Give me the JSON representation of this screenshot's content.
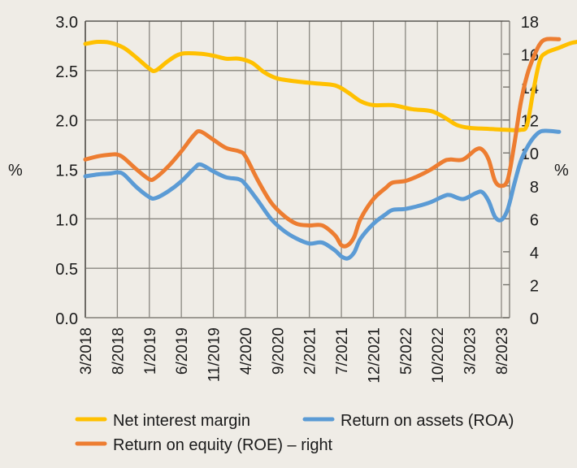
{
  "chart_data": {
    "type": "line",
    "title": "",
    "xlabel": "",
    "ylabel_left": "%",
    "ylabel_right": "%",
    "ylim_left": [
      0,
      3.0
    ],
    "ylim_right": [
      0,
      18
    ],
    "yticks_left": [
      "0.0",
      "0.5",
      "1.0",
      "1.5",
      "2.0",
      "2.5",
      "3.0"
    ],
    "yticks_right": [
      "0",
      "2",
      "4",
      "6",
      "8",
      "10",
      "12",
      "14",
      "16",
      "18"
    ],
    "xtick_labels": [
      "3/2018",
      "8/2018",
      "1/2019",
      "6/2019",
      "11/2019",
      "4/2020",
      "9/2020",
      "2/2021",
      "7/2021",
      "12/2021",
      "5/2022",
      "10/2022",
      "3/2023",
      "8/2023"
    ],
    "x_months_from_start_end": 66,
    "grid": true,
    "legend_position": "bottom",
    "series": [
      {
        "name": "Net interest margin",
        "axis": "left",
        "color": "#ffc000",
        "points": [
          [
            0,
            2.77
          ],
          [
            2,
            2.79
          ],
          [
            4,
            2.78
          ],
          [
            6,
            2.73
          ],
          [
            8,
            2.63
          ],
          [
            10,
            2.52
          ],
          [
            11,
            2.5
          ],
          [
            13,
            2.6
          ],
          [
            15,
            2.67
          ],
          [
            18,
            2.67
          ],
          [
            20,
            2.65
          ],
          [
            22,
            2.62
          ],
          [
            24,
            2.62
          ],
          [
            26,
            2.58
          ],
          [
            28,
            2.48
          ],
          [
            30,
            2.42
          ],
          [
            33,
            2.39
          ],
          [
            36,
            2.37
          ],
          [
            39,
            2.35
          ],
          [
            41,
            2.28
          ],
          [
            43,
            2.19
          ],
          [
            45,
            2.15
          ],
          [
            48,
            2.15
          ],
          [
            51,
            2.11
          ],
          [
            54,
            2.09
          ],
          [
            56,
            2.03
          ],
          [
            58,
            1.95
          ],
          [
            60,
            1.92
          ],
          [
            63,
            1.91
          ],
          [
            66,
            1.9
          ],
          [
            68,
            1.9
          ],
          [
            69,
            1.95
          ],
          [
            70,
            2.3
          ],
          [
            71,
            2.6
          ],
          [
            72,
            2.68
          ],
          [
            74,
            2.73
          ],
          [
            76,
            2.78
          ],
          [
            78,
            2.8
          ]
        ]
      },
      {
        "name": "Return on equity (ROE) – right",
        "axis": "right",
        "color": "#ed7d31",
        "points": [
          [
            0,
            9.6
          ],
          [
            2,
            9.8
          ],
          [
            4,
            9.9
          ],
          [
            5,
            9.9
          ],
          [
            6,
            9.7
          ],
          [
            8,
            9.0
          ],
          [
            10,
            8.4
          ],
          [
            11,
            8.5
          ],
          [
            13,
            9.2
          ],
          [
            15,
            10.1
          ],
          [
            17,
            11.1
          ],
          [
            18,
            11.3
          ],
          [
            20,
            10.8
          ],
          [
            22,
            10.3
          ],
          [
            24,
            10.1
          ],
          [
            25,
            9.8
          ],
          [
            27,
            8.3
          ],
          [
            29,
            7.0
          ],
          [
            31,
            6.2
          ],
          [
            33,
            5.7
          ],
          [
            35,
            5.6
          ],
          [
            37,
            5.6
          ],
          [
            39,
            5.0
          ],
          [
            40,
            4.4
          ],
          [
            41,
            4.4
          ],
          [
            42,
            4.9
          ],
          [
            43,
            6.0
          ],
          [
            45,
            7.2
          ],
          [
            47,
            7.9
          ],
          [
            48,
            8.2
          ],
          [
            50,
            8.3
          ],
          [
            52,
            8.6
          ],
          [
            54,
            9.0
          ],
          [
            56,
            9.5
          ],
          [
            57,
            9.6
          ],
          [
            59,
            9.6
          ],
          [
            61,
            10.2
          ],
          [
            62,
            10.2
          ],
          [
            63,
            9.6
          ],
          [
            64,
            8.3
          ],
          [
            65,
            8.0
          ],
          [
            66,
            8.4
          ],
          [
            67,
            10.5
          ],
          [
            68,
            13.0
          ],
          [
            69,
            14.7
          ],
          [
            70,
            15.8
          ],
          [
            71,
            16.6
          ],
          [
            72,
            16.9
          ],
          [
            74,
            16.9
          ]
        ]
      },
      {
        "name": "Return on assets (ROA)",
        "axis": "left",
        "color": "#5b9bd5",
        "points": [
          [
            0,
            1.43
          ],
          [
            2,
            1.45
          ],
          [
            4,
            1.46
          ],
          [
            5,
            1.47
          ],
          [
            6,
            1.45
          ],
          [
            8,
            1.32
          ],
          [
            10,
            1.22
          ],
          [
            11,
            1.21
          ],
          [
            13,
            1.28
          ],
          [
            15,
            1.38
          ],
          [
            17,
            1.51
          ],
          [
            18,
            1.55
          ],
          [
            20,
            1.48
          ],
          [
            22,
            1.42
          ],
          [
            24,
            1.4
          ],
          [
            25,
            1.35
          ],
          [
            27,
            1.18
          ],
          [
            29,
            1.0
          ],
          [
            31,
            0.88
          ],
          [
            33,
            0.8
          ],
          [
            35,
            0.75
          ],
          [
            37,
            0.76
          ],
          [
            39,
            0.68
          ],
          [
            40,
            0.62
          ],
          [
            41,
            0.6
          ],
          [
            42,
            0.66
          ],
          [
            43,
            0.8
          ],
          [
            45,
            0.95
          ],
          [
            47,
            1.05
          ],
          [
            48,
            1.09
          ],
          [
            50,
            1.1
          ],
          [
            52,
            1.13
          ],
          [
            54,
            1.17
          ],
          [
            56,
            1.23
          ],
          [
            57,
            1.24
          ],
          [
            59,
            1.2
          ],
          [
            61,
            1.26
          ],
          [
            62,
            1.27
          ],
          [
            63,
            1.18
          ],
          [
            64,
            1.02
          ],
          [
            65,
            0.99
          ],
          [
            66,
            1.1
          ],
          [
            67,
            1.35
          ],
          [
            68,
            1.58
          ],
          [
            69,
            1.72
          ],
          [
            70,
            1.82
          ],
          [
            71,
            1.88
          ],
          [
            72,
            1.89
          ],
          [
            74,
            1.88
          ]
        ]
      }
    ],
    "legend": [
      {
        "label": "Net interest margin",
        "color": "#ffc000"
      },
      {
        "label": "Return on assets (ROA)",
        "color": "#5b9bd5"
      },
      {
        "label": "Return on equity (ROE) – right",
        "color": "#ed7d31"
      }
    ]
  }
}
